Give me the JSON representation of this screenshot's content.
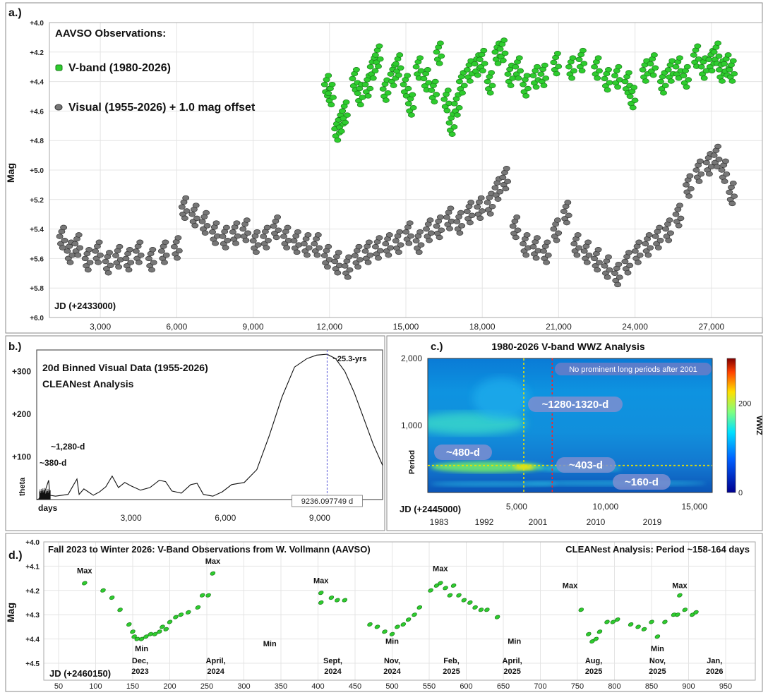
{
  "chart_data": [
    {
      "type": "scatter",
      "panel_label": "a.)",
      "title": "AAVSO Observations:",
      "ylabel": "Mag",
      "x_axis_note": "JD (+2433000)",
      "x_ticks": [
        "3,000",
        "6,000",
        "9,000",
        "12,000",
        "15,000",
        "18,000",
        "21,000",
        "24,000",
        "27,000"
      ],
      "y_ticks": [
        "+4.0",
        "+4.2",
        "+4.4",
        "+4.6",
        "+4.8",
        "+5.0",
        "+5.2",
        "+5.4",
        "+5.6",
        "+5.8",
        "+6.0"
      ],
      "xlim": [
        1000,
        29000
      ],
      "ylim": [
        4.0,
        6.0
      ],
      "y_inverted": true,
      "grid": true,
      "legend_position": "top-left",
      "series": [
        {
          "name": "V-band (1980-2026)",
          "color": "#2ecc2e",
          "points": [
            [
              11900,
              4.42
            ],
            [
              12050,
              4.48
            ],
            [
              12300,
              4.72
            ],
            [
              12450,
              4.66
            ],
            [
              12600,
              4.6
            ],
            [
              13000,
              4.38
            ],
            [
              13200,
              4.48
            ],
            [
              13500,
              4.42
            ],
            [
              13700,
              4.3
            ],
            [
              13900,
              4.22
            ],
            [
              14200,
              4.45
            ],
            [
              14500,
              4.35
            ],
            [
              14700,
              4.28
            ],
            [
              15000,
              4.42
            ],
            [
              15200,
              4.55
            ],
            [
              15500,
              4.3
            ],
            [
              15800,
              4.38
            ],
            [
              16100,
              4.46
            ],
            [
              16300,
              4.2
            ],
            [
              16600,
              4.52
            ],
            [
              16800,
              4.68
            ],
            [
              17000,
              4.55
            ],
            [
              17200,
              4.4
            ],
            [
              17500,
              4.32
            ],
            [
              17800,
              4.28
            ],
            [
              18000,
              4.25
            ],
            [
              18300,
              4.4
            ],
            [
              18600,
              4.2
            ],
            [
              18800,
              4.18
            ],
            [
              19100,
              4.35
            ],
            [
              19400,
              4.3
            ],
            [
              19700,
              4.42
            ],
            [
              20100,
              4.36
            ],
            [
              20400,
              4.35
            ],
            [
              20900,
              4.27
            ],
            [
              21500,
              4.3
            ],
            [
              21900,
              4.25
            ],
            [
              22500,
              4.3
            ],
            [
              22900,
              4.38
            ],
            [
              23300,
              4.36
            ],
            [
              23700,
              4.4
            ],
            [
              23900,
              4.5
            ],
            [
              24400,
              4.32
            ],
            [
              24700,
              4.28
            ],
            [
              25100,
              4.4
            ],
            [
              25400,
              4.32
            ],
            [
              25700,
              4.3
            ],
            [
              26000,
              4.36
            ],
            [
              26400,
              4.22
            ],
            [
              26700,
              4.3
            ],
            [
              27000,
              4.25
            ],
            [
              27200,
              4.2
            ],
            [
              27400,
              4.32
            ],
            [
              27600,
              4.28
            ],
            [
              27800,
              4.32
            ]
          ]
        },
        {
          "name": "Visual (1955-2026) + 1.0 mag offset",
          "color": "#777777",
          "points": [
            [
              1500,
              5.45
            ],
            [
              1800,
              5.55
            ],
            [
              2100,
              5.5
            ],
            [
              2500,
              5.6
            ],
            [
              2900,
              5.55
            ],
            [
              3300,
              5.62
            ],
            [
              3700,
              5.58
            ],
            [
              4100,
              5.6
            ],
            [
              4500,
              5.55
            ],
            [
              5000,
              5.6
            ],
            [
              5500,
              5.55
            ],
            [
              6000,
              5.52
            ],
            [
              6300,
              5.25
            ],
            [
              6700,
              5.3
            ],
            [
              7100,
              5.35
            ],
            [
              7500,
              5.42
            ],
            [
              7900,
              5.45
            ],
            [
              8300,
              5.42
            ],
            [
              8700,
              5.4
            ],
            [
              9100,
              5.48
            ],
            [
              9500,
              5.45
            ],
            [
              9900,
              5.38
            ],
            [
              10300,
              5.45
            ],
            [
              10700,
              5.48
            ],
            [
              11100,
              5.5
            ],
            [
              11500,
              5.5
            ],
            [
              11900,
              5.58
            ],
            [
              12300,
              5.62
            ],
            [
              12700,
              5.65
            ],
            [
              13100,
              5.58
            ],
            [
              13500,
              5.55
            ],
            [
              13900,
              5.52
            ],
            [
              14300,
              5.5
            ],
            [
              14700,
              5.48
            ],
            [
              15100,
              5.42
            ],
            [
              15500,
              5.48
            ],
            [
              15900,
              5.4
            ],
            [
              16300,
              5.38
            ],
            [
              16700,
              5.32
            ],
            [
              17100,
              5.35
            ],
            [
              17500,
              5.28
            ],
            [
              17900,
              5.25
            ],
            [
              18300,
              5.22
            ],
            [
              18600,
              5.12
            ],
            [
              18900,
              5.05
            ],
            [
              19300,
              5.38
            ],
            [
              19700,
              5.5
            ],
            [
              20100,
              5.52
            ],
            [
              20500,
              5.55
            ],
            [
              20900,
              5.4
            ],
            [
              21300,
              5.28
            ],
            [
              21700,
              5.5
            ],
            [
              22100,
              5.55
            ],
            [
              22500,
              5.6
            ],
            [
              22900,
              5.65
            ],
            [
              23300,
              5.7
            ],
            [
              23700,
              5.62
            ],
            [
              24100,
              5.55
            ],
            [
              24500,
              5.5
            ],
            [
              24900,
              5.45
            ],
            [
              25300,
              5.4
            ],
            [
              25700,
              5.3
            ],
            [
              26100,
              5.1
            ],
            [
              26500,
              5.0
            ],
            [
              26900,
              4.95
            ],
            [
              27200,
              4.9
            ],
            [
              27500,
              5.0
            ],
            [
              27800,
              5.15
            ]
          ]
        }
      ]
    },
    {
      "type": "line",
      "panel_label": "b.)",
      "title": "20d Binned Visual Data (1955-2026)",
      "subtitle": "CLEANest Analysis",
      "xlabel": "days",
      "ylabel": "theta",
      "x_ticks": [
        "3,000",
        "6,000",
        "9,000"
      ],
      "y_ticks": [
        "+100",
        "+200",
        "+300"
      ],
      "xlim": [
        0,
        11000
      ],
      "ylim": [
        0,
        350
      ],
      "cursor_x": 9236.097749,
      "cursor_label": "9236.097749 d",
      "annotations": [
        "~25.3-yrs",
        "~1,280-d",
        "~380-d"
      ],
      "x": [
        0,
        200,
        380,
        420,
        600,
        800,
        1000,
        1280,
        1350,
        1500,
        1800,
        2000,
        2200,
        2400,
        2600,
        2800,
        3000,
        3300,
        3600,
        3900,
        4100,
        4300,
        4600,
        4900,
        5100,
        5300,
        5600,
        5900,
        6200,
        6600,
        7000,
        7400,
        7800,
        8200,
        8600,
        8900,
        9236,
        9500,
        9800,
        10100,
        10400,
        10700,
        11000
      ],
      "values": [
        0,
        5,
        45,
        10,
        8,
        10,
        12,
        48,
        12,
        25,
        10,
        18,
        30,
        55,
        28,
        40,
        32,
        22,
        28,
        45,
        42,
        20,
        15,
        35,
        38,
        12,
        8,
        18,
        35,
        40,
        70,
        150,
        240,
        310,
        330,
        338,
        340,
        330,
        300,
        250,
        190,
        130,
        80
      ]
    },
    {
      "type": "heatmap",
      "panel_label": "c.)",
      "title": "1980-2026 V-band WWZ Analysis",
      "ylabel": "Period",
      "colorbar_label": "WWZ",
      "colorbar_ticks": [
        "0",
        "200"
      ],
      "x_axis_note": "JD (+2445000)",
      "x_ticks": [
        "5,000",
        "10,000",
        "15,000"
      ],
      "x_ticks_years": [
        "1983",
        "1992",
        "2001",
        "2010",
        "2019"
      ],
      "y_ticks": [
        "1,000",
        "2,000"
      ],
      "xlim": [
        0,
        16000
      ],
      "ylim": [
        0,
        2000
      ],
      "vertical_markers": [
        5400,
        7000
      ],
      "horizontal_marker": 403,
      "notes": [
        "No prominent long periods after 2001"
      ],
      "bands": [
        "~1280-1320-d",
        "~480-d",
        "~403-d",
        "~160-d"
      ]
    },
    {
      "type": "scatter",
      "panel_label": "d.)",
      "title": "Fall 2023 to Winter 2026: V-Band Observations from W. Vollmann (AAVSO)",
      "subtitle": "CLEANest Analysis: Period ~158-164 days",
      "ylabel": "Mag",
      "x_axis_note": "JD (+2460150)",
      "x_ticks": [
        "50",
        "100",
        "150",
        "200",
        "250",
        "300",
        "350",
        "400",
        "450",
        "500",
        "550",
        "600",
        "650",
        "700",
        "750",
        "800",
        "850",
        "900",
        "950"
      ],
      "y_ticks": [
        "+4.0",
        "+4.1",
        "+4.2",
        "+4.3",
        "+4.4",
        "+4.5"
      ],
      "xlim": [
        30,
        990
      ],
      "ylim": [
        4.0,
        4.5
      ],
      "y_inverted": true,
      "grid": true,
      "series": [
        {
          "name": "",
          "color": "#2ecc2e",
          "points": [
            [
              85,
              4.17
            ],
            [
              110,
              4.2
            ],
            [
              122,
              4.23
            ],
            [
              133,
              4.28
            ],
            [
              145,
              4.34
            ],
            [
              150,
              4.37
            ],
            [
              152,
              4.39
            ],
            [
              156,
              4.4
            ],
            [
              162,
              4.4
            ],
            [
              168,
              4.39
            ],
            [
              174,
              4.38
            ],
            [
              180,
              4.38
            ],
            [
              186,
              4.37
            ],
            [
              190,
              4.35
            ],
            [
              195,
              4.36
            ],
            [
              200,
              4.33
            ],
            [
              208,
              4.31
            ],
            [
              215,
              4.3
            ],
            [
              225,
              4.29
            ],
            [
              238,
              4.27
            ],
            [
              244,
              4.22
            ],
            [
              252,
              4.22
            ],
            [
              258,
              4.13
            ],
            [
              404,
              4.21
            ],
            [
              404,
              4.25
            ],
            [
              418,
              4.23
            ],
            [
              426,
              4.24
            ],
            [
              436,
              4.24
            ],
            [
              470,
              4.34
            ],
            [
              480,
              4.35
            ],
            [
              490,
              4.37
            ],
            [
              500,
              4.38
            ],
            [
              507,
              4.35
            ],
            [
              515,
              4.34
            ],
            [
              522,
              4.32
            ],
            [
              530,
              4.3
            ],
            [
              537,
              4.27
            ],
            [
              552,
              4.2
            ],
            [
              560,
              4.18
            ],
            [
              565,
              4.17
            ],
            [
              572,
              4.19
            ],
            [
              578,
              4.22
            ],
            [
              583,
              4.18
            ],
            [
              590,
              4.22
            ],
            [
              597,
              4.24
            ],
            [
              605,
              4.25
            ],
            [
              612,
              4.27
            ],
            [
              620,
              4.28
            ],
            [
              628,
              4.28
            ],
            [
              642,
              4.31
            ],
            [
              755,
              4.28
            ],
            [
              765,
              4.38
            ],
            [
              770,
              4.41
            ],
            [
              775,
              4.4
            ],
            [
              780,
              4.37
            ],
            [
              790,
              4.33
            ],
            [
              798,
              4.33
            ],
            [
              804,
              4.32
            ],
            [
              822,
              4.34
            ],
            [
              832,
              4.35
            ],
            [
              840,
              4.36
            ],
            [
              850,
              4.33
            ],
            [
              858,
              4.39
            ],
            [
              868,
              4.33
            ],
            [
              880,
              4.3
            ],
            [
              885,
              4.3
            ],
            [
              888,
              4.22
            ],
            [
              895,
              4.28
            ],
            [
              905,
              4.3
            ],
            [
              910,
              4.29
            ]
          ]
        }
      ],
      "labels": [
        {
          "text": "Max",
          "x": 85,
          "y": 4.13
        },
        {
          "text": "Min",
          "x": 162,
          "y": 4.45
        },
        {
          "text": "Max",
          "x": 258,
          "y": 4.09
        },
        {
          "text": "Min",
          "x": 335,
          "y": 4.43
        },
        {
          "text": "Max",
          "x": 404,
          "y": 4.17
        },
        {
          "text": "Min",
          "x": 500,
          "y": 4.42
        },
        {
          "text": "Max",
          "x": 565,
          "y": 4.12
        },
        {
          "text": "Min",
          "x": 665,
          "y": 4.42
        },
        {
          "text": "Max",
          "x": 740,
          "y": 4.19
        },
        {
          "text": "Min",
          "x": 858,
          "y": 4.45
        },
        {
          "text": "Max",
          "x": 888,
          "y": 4.19
        }
      ],
      "date_labels": [
        {
          "line1": "Dec,",
          "line2": "2023",
          "x": 160
        },
        {
          "line1": "April,",
          "line2": "2024",
          "x": 262
        },
        {
          "line1": "Sept,",
          "line2": "2024",
          "x": 420
        },
        {
          "line1": "Nov,",
          "line2": "2024",
          "x": 500
        },
        {
          "line1": "Feb,",
          "line2": "2025",
          "x": 580
        },
        {
          "line1": "April,",
          "line2": "2025",
          "x": 662
        },
        {
          "line1": "Aug,",
          "line2": "2025",
          "x": 772
        },
        {
          "line1": "Nov,",
          "line2": "2025",
          "x": 858
        },
        {
          "line1": "Jan,",
          "line2": "2026",
          "x": 935
        }
      ]
    }
  ]
}
